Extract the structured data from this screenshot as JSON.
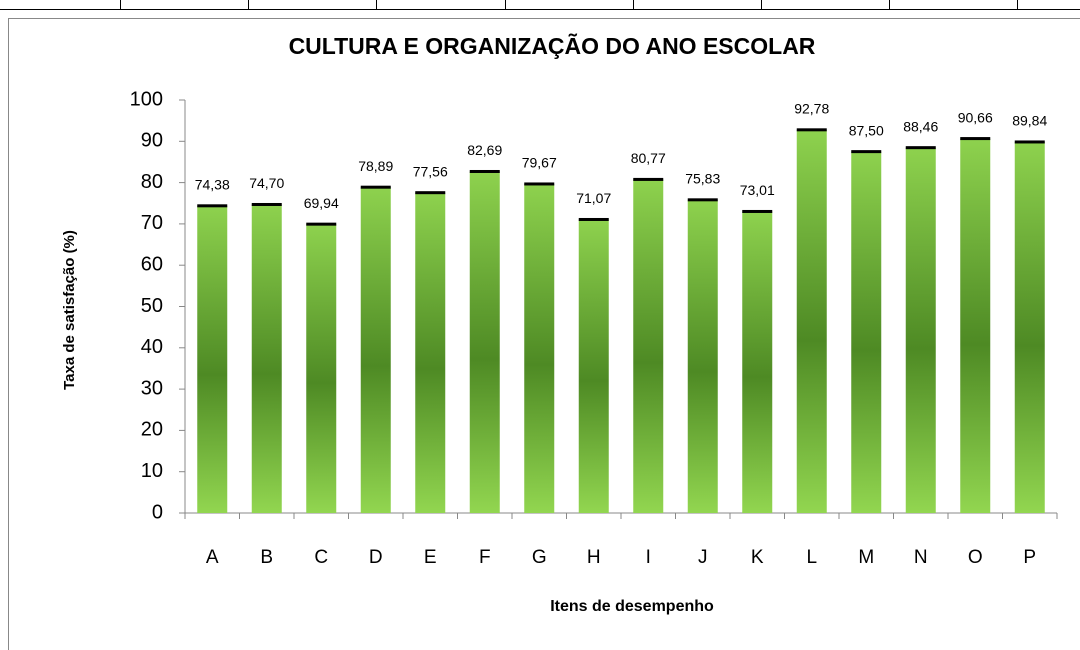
{
  "chart_data": {
    "type": "bar",
    "title": "CULTURA E ORGANIZAÇÃO DO ANO ESCOLAR",
    "xlabel": "Itens de desempenho",
    "ylabel": "Taxa de satisfação (%)",
    "categories": [
      "A",
      "B",
      "C",
      "D",
      "E",
      "F",
      "G",
      "H",
      "I",
      "J",
      "K",
      "L",
      "M",
      "N",
      "O",
      "P"
    ],
    "values": [
      74.38,
      74.7,
      69.94,
      78.89,
      77.56,
      82.69,
      79.67,
      71.07,
      80.77,
      75.83,
      73.01,
      92.78,
      87.5,
      88.46,
      90.66,
      89.84
    ],
    "value_labels": [
      "74,38",
      "74,70",
      "69,94",
      "78,89",
      "77,56",
      "82,69",
      "79,67",
      "71,07",
      "80,77",
      "75,83",
      "73,01",
      "92,78",
      "87,50",
      "88,46",
      "90,66",
      "89,84"
    ],
    "color": "#5a9a2a",
    "ylim": [
      0,
      100
    ],
    "yticks": [
      0,
      10,
      20,
      30,
      40,
      50,
      60,
      70,
      80,
      90,
      100
    ]
  }
}
